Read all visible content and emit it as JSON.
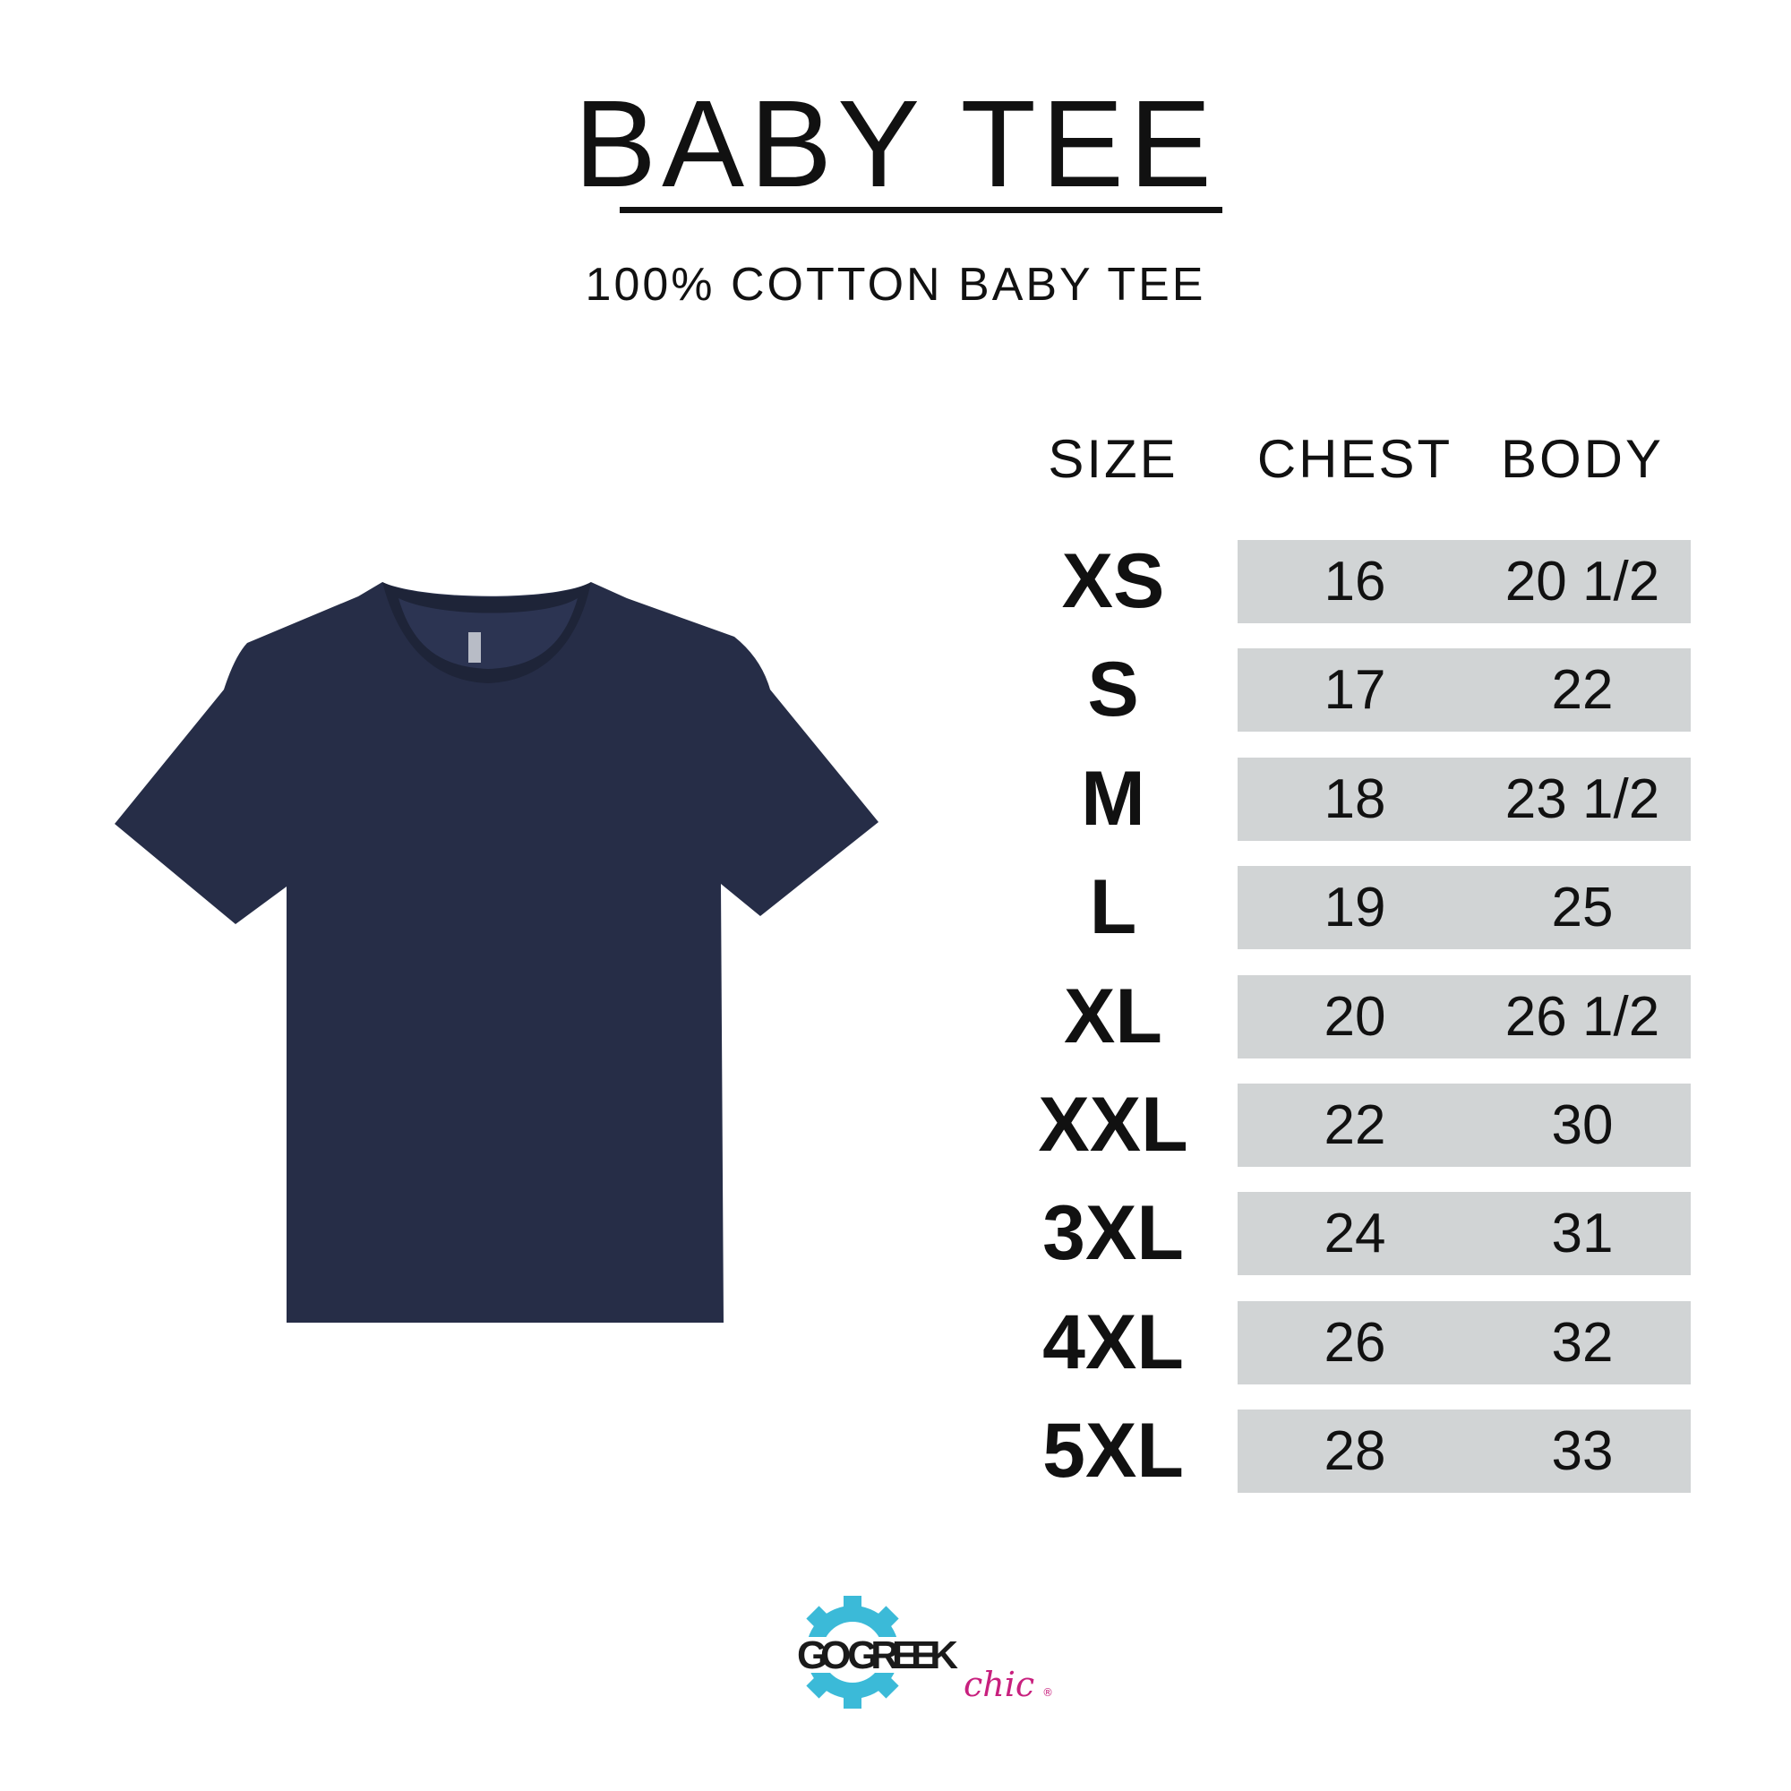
{
  "title": "BABY TEE",
  "subtitle": "100% COTTON BABY TEE",
  "table": {
    "headers": [
      "SIZE",
      "CHEST",
      "BODY"
    ],
    "rows": [
      {
        "size": "XS",
        "chest": "16",
        "body": "20 1/2"
      },
      {
        "size": "S",
        "chest": "17",
        "body": "22"
      },
      {
        "size": "M",
        "chest": "18",
        "body": "23 1/2"
      },
      {
        "size": "L",
        "chest": "19",
        "body": "25"
      },
      {
        "size": "XL",
        "chest": "20",
        "body": "26 1/2"
      },
      {
        "size": "XXL",
        "chest": "22",
        "body": "30"
      },
      {
        "size": "3XL",
        "chest": "24",
        "body": "31"
      },
      {
        "size": "4XL",
        "chest": "26",
        "body": "32"
      },
      {
        "size": "5XL",
        "chest": "28",
        "body": "33"
      }
    ]
  },
  "product_image": {
    "garment": "t-shirt",
    "color": "#262d47"
  },
  "logo": {
    "text_main": "GO GREEK",
    "text_script": "chic",
    "gear_color": "#3bbad8",
    "script_color": "#c8207e"
  },
  "colors": {
    "row_band": "#d1d4d5",
    "text": "#111111"
  }
}
